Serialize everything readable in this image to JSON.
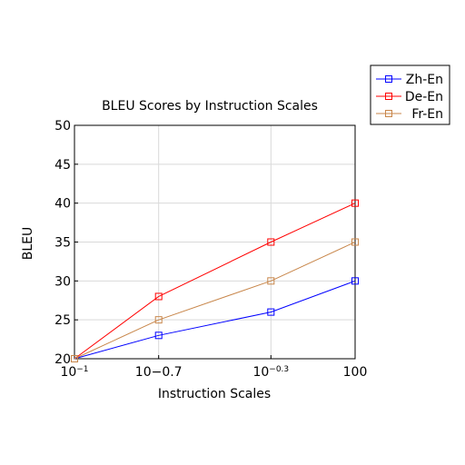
{
  "chart_data": {
    "type": "line",
    "title": "BLEU Scores by Instruction Scales",
    "xlabel": "Instruction Scales",
    "ylabel": "BLEU",
    "x_ticks": [
      {
        "value": -1,
        "base": "10",
        "exp": "−1"
      },
      {
        "value": -0.7,
        "base": "10−0.7",
        "exp": ""
      },
      {
        "value": -0.3,
        "base": "10",
        "exp": "−0.3"
      },
      {
        "value": 0,
        "base": "100",
        "exp": ""
      }
    ],
    "x_log_exponents": [
      -1,
      -0.7,
      -0.3,
      0
    ],
    "xlim": [
      -1,
      0
    ],
    "ylim": [
      20,
      50
    ],
    "y_ticks": [
      20,
      25,
      30,
      35,
      40,
      45,
      50
    ],
    "grid": true,
    "legend_position": "top-right, outside",
    "series": [
      {
        "name": "Zh-En",
        "color": "#0000ff",
        "values": [
          20,
          23,
          26,
          30
        ]
      },
      {
        "name": "De-En",
        "color": "#ff0000",
        "values": [
          20,
          28,
          35,
          40
        ]
      },
      {
        "name": "Fr-En",
        "color": "#c8864a",
        "values": [
          20,
          25,
          30,
          35
        ]
      }
    ]
  }
}
